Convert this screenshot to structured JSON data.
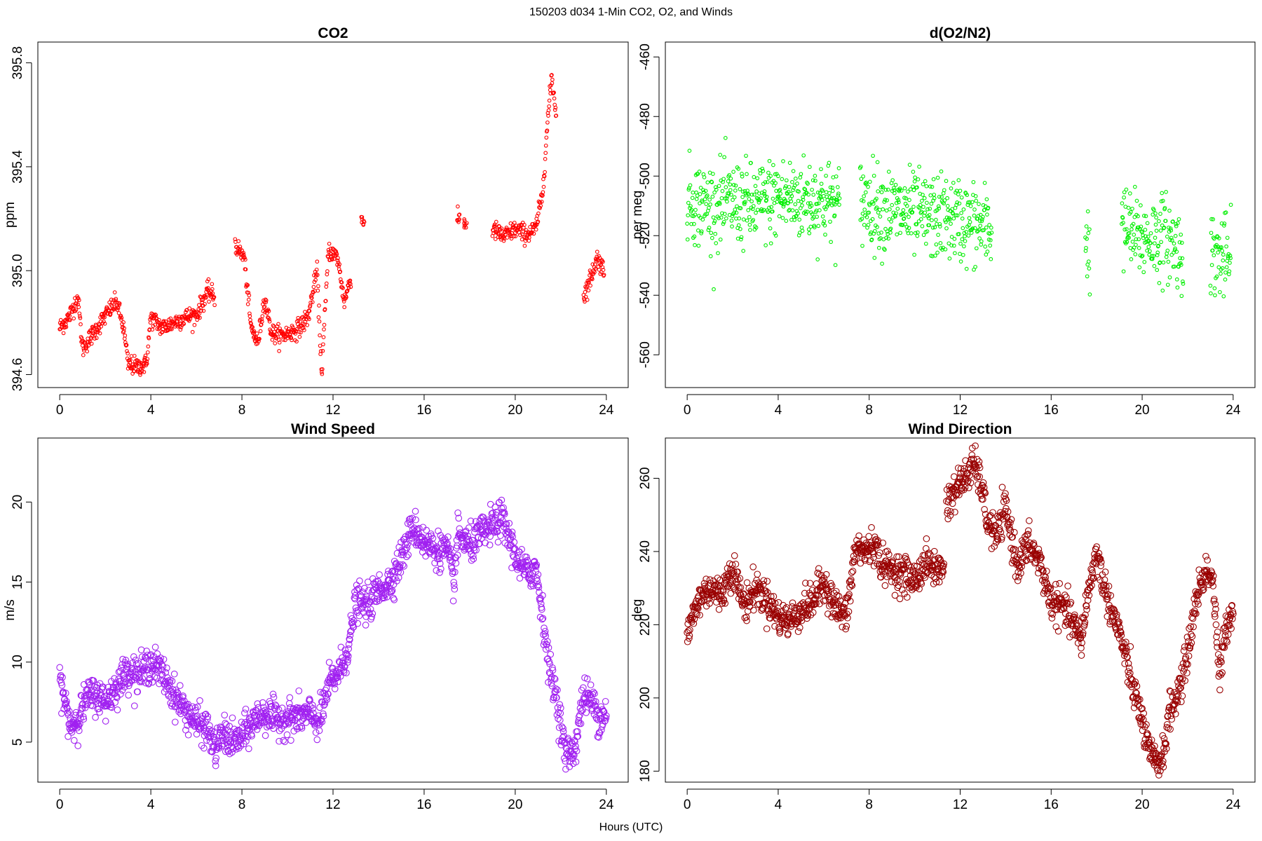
{
  "figure": {
    "title": "150203   d034   1-Min CO2, O2, and Winds",
    "xlabel": "Hours (UTC)"
  },
  "chart_data": [
    {
      "id": "co2",
      "type": "scatter",
      "title": "CO2",
      "xlabel": "",
      "ylabel": "ppm",
      "color": "#ff0000",
      "marker_size": "small",
      "xlim": [
        -0.96,
        24.96
      ],
      "ylim": [
        394.55,
        395.88
      ],
      "xticks": [
        0,
        4,
        8,
        12,
        16,
        20,
        24
      ],
      "yticks": [
        394.6,
        395.0,
        395.4,
        395.8
      ],
      "ytick_labels": [
        "394.6",
        "395.0",
        "395.4",
        "395.8"
      ],
      "segments": [
        {
          "x": [
            0.0,
            0.4,
            0.8,
            1.0,
            1.4,
            1.8,
            2.2,
            2.5,
            2.8,
            3.0,
            3.4,
            3.8,
            4.0,
            4.5,
            5.0,
            5.5,
            6.0,
            6.5,
            6.8
          ],
          "y": [
            394.78,
            394.82,
            394.9,
            394.7,
            394.75,
            394.8,
            394.85,
            394.88,
            394.78,
            394.64,
            394.63,
            394.64,
            394.82,
            394.78,
            394.8,
            394.82,
            394.83,
            394.92,
            394.9
          ]
        },
        {
          "x": [
            7.7,
            8.1,
            8.4,
            8.7,
            9.0,
            9.3,
            9.7,
            10.1,
            10.5,
            10.9,
            11.3,
            11.5,
            11.8,
            12.2,
            12.5,
            12.8
          ],
          "y": [
            395.1,
            395.05,
            394.78,
            394.72,
            394.9,
            394.76,
            394.75,
            394.76,
            394.78,
            394.82,
            395.0,
            394.6,
            395.08,
            395.05,
            394.88,
            394.98
          ]
        },
        {
          "x": [
            13.3,
            17.5,
            17.8
          ],
          "y": [
            395.19,
            395.2,
            395.18
          ]
        },
        {
          "x": [
            19.0,
            19.5,
            20.0,
            20.5,
            20.9,
            21.2,
            21.4,
            21.6,
            21.8
          ],
          "y": [
            395.16,
            395.13,
            395.16,
            395.14,
            395.16,
            395.3,
            395.55,
            395.75,
            395.6
          ]
        },
        {
          "x": [
            23.0,
            23.3,
            23.6,
            23.9
          ],
          "y": [
            394.9,
            394.97,
            395.05,
            395.0
          ]
        }
      ],
      "noise": 0.018
    },
    {
      "id": "o2",
      "type": "scatter",
      "title": "d(O2/N2)",
      "xlabel": "",
      "ylabel": "per meg",
      "color": "#00ee00",
      "marker_size": "small",
      "xlim": [
        -0.96,
        24.96
      ],
      "ylim": [
        -571,
        -455
      ],
      "xticks": [
        0,
        4,
        8,
        12,
        16,
        20,
        24
      ],
      "yticks": [
        -460,
        -480,
        -500,
        -520,
        -540,
        -560
      ],
      "ytick_labels": [
        "-460",
        "-480",
        "-500",
        "-520",
        "-540",
        "-560"
      ],
      "segments": [
        {
          "x": [
            0.0,
            1.0,
            2.0,
            3.0,
            4.0,
            5.0,
            6.0,
            6.7
          ],
          "y": [
            -508,
            -510,
            -509,
            -510,
            -507,
            -508,
            -508,
            -510
          ]
        },
        {
          "x": [
            7.6,
            8.5,
            9.5,
            10.5,
            11.5,
            12.5,
            13.4
          ],
          "y": [
            -508,
            -511,
            -512,
            -514,
            -514,
            -516,
            -518
          ]
        },
        {
          "x": [
            17.5,
            17.7
          ],
          "y": [
            -522,
            -524
          ]
        },
        {
          "x": [
            19.1,
            20.0,
            21.0,
            21.8
          ],
          "y": [
            -517,
            -521,
            -520,
            -526
          ]
        },
        {
          "x": [
            23.0,
            23.9
          ],
          "y": [
            -526,
            -528
          ]
        }
      ],
      "noise": 7
    },
    {
      "id": "wind_speed",
      "type": "scatter",
      "title": "Wind Speed",
      "xlabel": "",
      "ylabel": "m/s",
      "color": "#a020f0",
      "marker_size": "large",
      "xlim": [
        -0.96,
        24.96
      ],
      "ylim": [
        2.5,
        24.0
      ],
      "xticks": [
        0,
        4,
        8,
        12,
        16,
        20,
        24
      ],
      "yticks": [
        5,
        10,
        15,
        20
      ],
      "ytick_labels": [
        "5",
        "10",
        "15",
        "20"
      ],
      "segments": [
        {
          "x": [
            0.0,
            0.3,
            0.5,
            0.8,
            1.2,
            1.6,
            2.0,
            2.5,
            3.0,
            3.5,
            4.0,
            4.5,
            5.0,
            5.5,
            6.0,
            6.5,
            6.8,
            7.2,
            7.6,
            8.0,
            8.5,
            9.0,
            9.5,
            10.0,
            10.5,
            11.0,
            11.4,
            11.8,
            12.3,
            12.7,
            13.0,
            13.5,
            14.0,
            14.5,
            15.0,
            15.5,
            16.0,
            16.5,
            17.0,
            17.3,
            17.5,
            18.0,
            18.5,
            19.0,
            19.4,
            19.8,
            20.2,
            20.6,
            20.9,
            21.2,
            21.5,
            21.8,
            22.2,
            22.6,
            23.0,
            23.4,
            23.7,
            24.0
          ],
          "y": [
            9.0,
            7.0,
            6.0,
            6.5,
            7.8,
            8.0,
            7.5,
            8.5,
            9.5,
            9.2,
            10.0,
            9.3,
            8.0,
            7.0,
            6.2,
            5.8,
            4.5,
            5.5,
            5.0,
            5.3,
            6.3,
            6.8,
            6.4,
            6.5,
            6.6,
            6.7,
            6.2,
            8.5,
            9.5,
            11.0,
            13.8,
            13.5,
            14.5,
            15.0,
            16.5,
            18.5,
            17.5,
            17.0,
            17.0,
            15.0,
            18.0,
            17.2,
            18.0,
            18.5,
            19.0,
            17.5,
            16.0,
            15.5,
            16.0,
            13.0,
            9.5,
            8.0,
            4.2,
            4.5,
            8.0,
            7.5,
            6.5,
            7.0
          ]
        }
      ],
      "noise": 0.55
    },
    {
      "id": "wind_direction",
      "type": "scatter",
      "title": "Wind Direction",
      "xlabel": "",
      "ylabel": "deg",
      "color": "#990000",
      "marker_size": "large",
      "xlim": [
        -0.96,
        24.96
      ],
      "ylim": [
        177,
        271
      ],
      "xticks": [
        0,
        4,
        8,
        12,
        16,
        20,
        24
      ],
      "yticks": [
        180,
        200,
        220,
        240,
        260
      ],
      "ytick_labels": [
        "180",
        "200",
        "220",
        "240",
        "260"
      ],
      "segments": [
        {
          "x": [
            0.0,
            0.3,
            0.6,
            1.0,
            1.5,
            2.0,
            2.5,
            3.0,
            3.5,
            4.0,
            4.5,
            5.0,
            5.5,
            6.0,
            6.5,
            7.0,
            7.4,
            7.8,
            8.2,
            8.6,
            9.0,
            9.5,
            10.0,
            10.5,
            11.0,
            11.3
          ],
          "y": [
            217,
            223,
            228,
            230,
            228,
            236,
            225,
            230,
            227,
            222,
            221,
            224,
            226,
            232,
            225,
            222,
            241,
            240,
            242,
            236,
            235,
            234,
            232,
            237,
            235,
            236
          ]
        },
        {
          "x": [
            11.4,
            11.8,
            12.2,
            12.6,
            12.9,
            13.2,
            13.6,
            14.0,
            14.5,
            15.0,
            15.5,
            16.0,
            16.5,
            17.0,
            17.3,
            17.6,
            18.0,
            18.3,
            18.7,
            19.0,
            19.5,
            20.0,
            20.3,
            20.6,
            20.9,
            21.2,
            21.5,
            21.8,
            22.1,
            22.4,
            22.8,
            23.1,
            23.4,
            23.7,
            24.0
          ],
          "y": [
            253,
            257,
            260,
            264,
            259,
            248,
            244,
            252,
            236,
            242,
            237,
            226,
            225,
            220,
            215,
            228,
            240,
            231,
            223,
            218,
            205,
            194,
            185,
            182,
            184,
            196,
            200,
            206,
            216,
            228,
            235,
            233,
            205,
            220,
            225
          ]
        }
      ],
      "noise": 2.4
    }
  ]
}
